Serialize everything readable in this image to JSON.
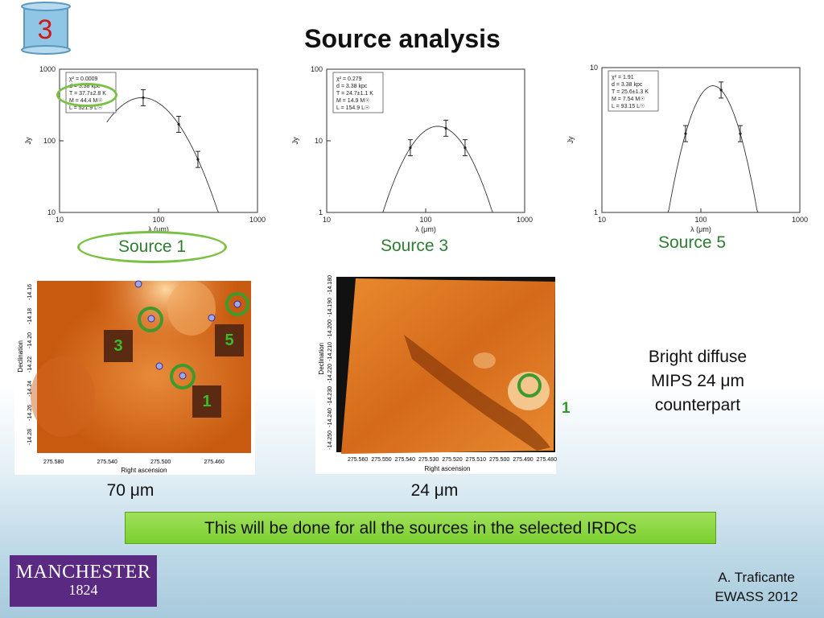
{
  "slide": {
    "number": "3",
    "title": "Source analysis"
  },
  "sed_plots": [
    {
      "id": "source1",
      "caption": "Source 1",
      "fit": [
        "χ² = 0.0009",
        "d = 3.38 kpc",
        "T = 37.7±2.8 K",
        "M = 44.4 M☉",
        "L = 521.9 L☉"
      ],
      "yticks": [
        "1000",
        "100",
        "10"
      ],
      "xticks": [
        "10",
        "100",
        "1000"
      ],
      "ylabel": "Jy",
      "xlabel": "λ (μm)",
      "chart_data": {
        "type": "scatter",
        "x": [
          70,
          160,
          250
        ],
        "y": [
          400,
          170,
          55
        ],
        "xlim": [
          10,
          1000
        ],
        "ylim": [
          10,
          1000
        ],
        "scale": "log-log"
      }
    },
    {
      "id": "source3",
      "caption": "Source 3",
      "fit": [
        "χ² = 0.279",
        "d = 3.38 kpc",
        "T = 24.7±1.1 K",
        "M = 14.9 M☉",
        "L = 154.9 L☉"
      ],
      "yticks": [
        "100",
        "10",
        "1"
      ],
      "xticks": [
        "10",
        "100",
        "1000"
      ],
      "ylabel": "Jy",
      "xlabel": "λ (μm)",
      "chart_data": {
        "type": "scatter",
        "x": [
          70,
          160,
          250
        ],
        "y": [
          8,
          15,
          8
        ],
        "xlim": [
          10,
          1000
        ],
        "ylim": [
          1,
          100
        ],
        "scale": "log-log"
      }
    },
    {
      "id": "source5",
      "caption": "Source 5",
      "fit": [
        "χ² = 1.91",
        "d = 3.38 kpc",
        "T = 25.6±1.3 K",
        "M = 7.54 M☉",
        "L = 93.15 L☉"
      ],
      "yticks": [
        "10",
        "1"
      ],
      "xticks": [
        "10",
        "100",
        "1000"
      ],
      "ylabel": "Jy",
      "xlabel": "λ (μm)",
      "chart_data": {
        "type": "scatter",
        "x": [
          70,
          160,
          250
        ],
        "y": [
          3.5,
          7,
          3.5
        ],
        "xlim": [
          10,
          1000
        ],
        "ylim": [
          1,
          10
        ],
        "scale": "log-log"
      }
    }
  ],
  "map70": {
    "caption": "70 μm",
    "ylabel": "Declination",
    "xlabel": "Right ascension",
    "yticks": [
      "-14.16",
      "-14.18",
      "-14.20",
      "-14.22",
      "-14.24",
      "-14.26",
      "-14.28"
    ],
    "xticks": [
      "275.580",
      "275.540",
      "275.500",
      "275.460"
    ],
    "labels": [
      "3",
      "5",
      "1"
    ]
  },
  "map24": {
    "caption": "24 μm",
    "ylabel": "Declination",
    "xlabel": "Right ascension",
    "yticks": [
      "-14.180",
      "-14.190",
      "-14.200",
      "-14.210",
      "-14.220",
      "-14.230",
      "-14.240",
      "-14.250"
    ],
    "xticks": [
      "275.560",
      "275.550",
      "275.540",
      "275.530",
      "275.520",
      "275.510",
      "275.500",
      "275.490",
      "275.480"
    ],
    "label": "1"
  },
  "note": [
    "Bright diffuse",
    "MIPS 24 μm",
    "counterpart"
  ],
  "banner": "This will be done for all the sources in the selected IRDCs",
  "logo": {
    "line1": "MANCHESTER",
    "line2": "1824"
  },
  "author": {
    "name": "A. Traficante",
    "event": "EWASS 2012"
  },
  "colors": {
    "accent_green": "#3c9b2c",
    "title_red": "#d01818",
    "logo_purple": "#5a2a82"
  }
}
